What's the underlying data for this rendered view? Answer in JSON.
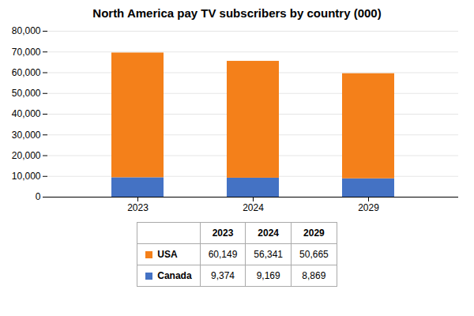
{
  "chart_data": {
    "type": "bar",
    "stacked": true,
    "title": "North America pay TV subscribers by country (000)",
    "categories": [
      "2023",
      "2024",
      "2029"
    ],
    "series": [
      {
        "name": "Canada",
        "color": "#4472C4",
        "values": [
          9374,
          9169,
          8869
        ],
        "value_labels": [
          "9,374",
          "9,169",
          "8,869"
        ]
      },
      {
        "name": "USA",
        "color": "#F4801A",
        "values": [
          60149,
          56341,
          50665
        ],
        "value_labels": [
          "60,149",
          "56,341",
          "50,665"
        ]
      }
    ],
    "ylim": [
      0,
      80000
    ],
    "yticks": [
      0,
      {
        "value": 10000,
        "label": "10,000"
      },
      {
        "value": 20000,
        "label": "20,000"
      },
      {
        "value": 30000,
        "label": "30,000"
      },
      {
        "value": 40000,
        "label": "40,000"
      },
      {
        "value": 50000,
        "label": "50,000"
      },
      {
        "value": 60000,
        "label": "60,000"
      },
      {
        "value": 70000,
        "label": "70,000"
      },
      {
        "value": 80000,
        "label": "80,000"
      }
    ],
    "grid": true
  }
}
